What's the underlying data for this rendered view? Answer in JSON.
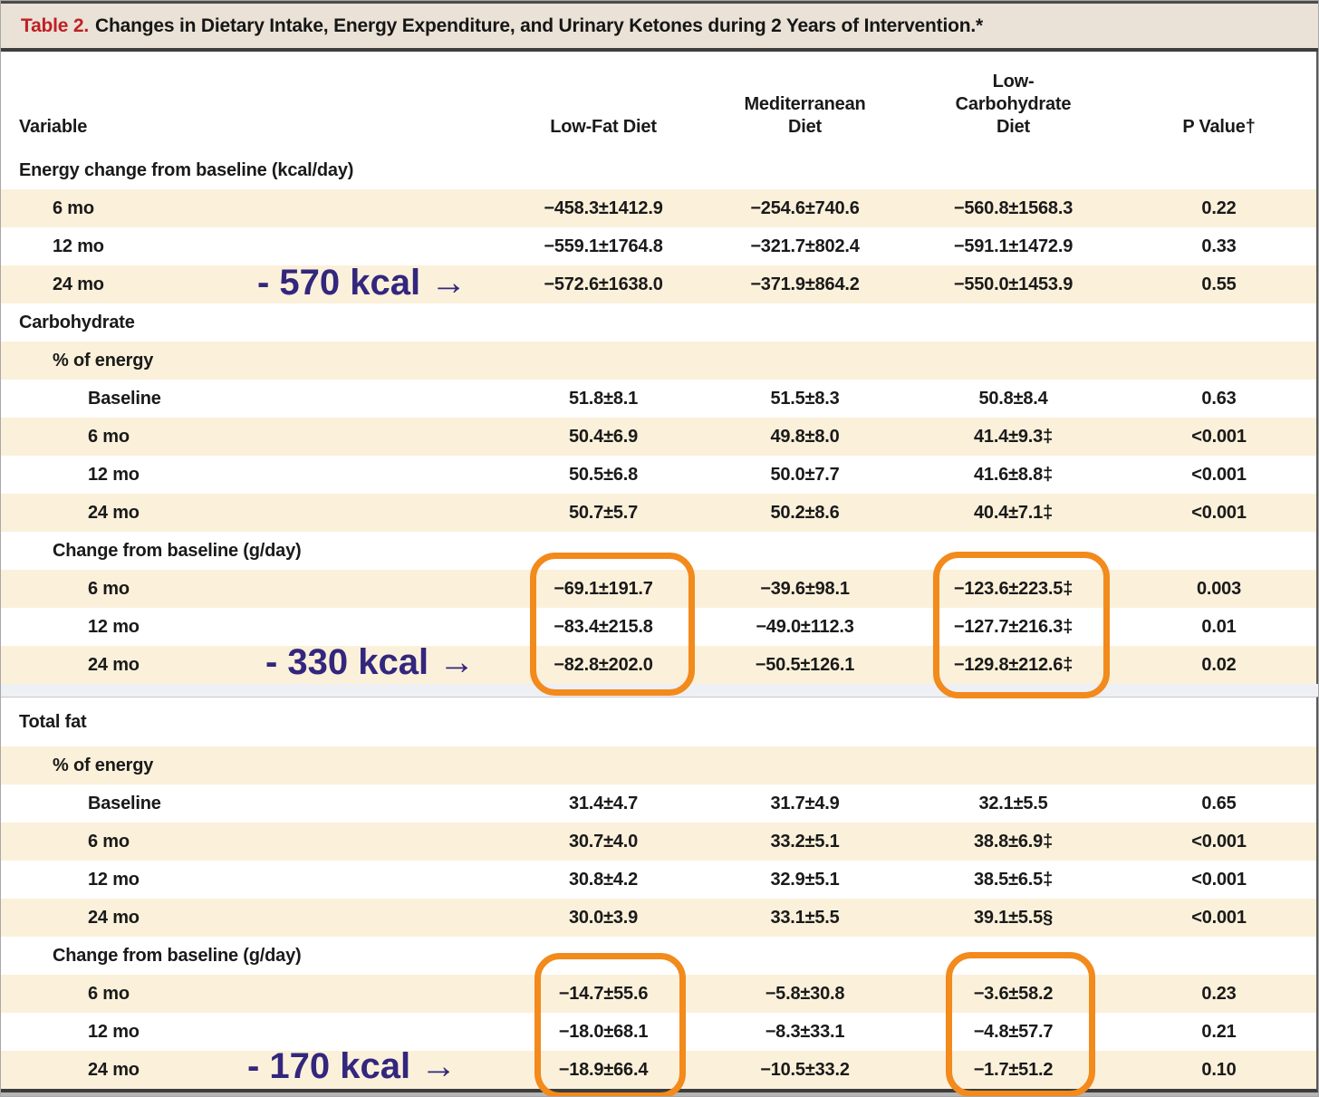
{
  "title": {
    "label": "Table 2.",
    "text": "Changes in Dietary Intake, Energy Expenditure, and Urinary Ketones during 2 Years of Intervention.*"
  },
  "columns": [
    "Variable",
    "Low-Fat Diet",
    "Mediterranean\nDiet",
    "Low-\nCarbohydrate\nDiet",
    "P Value†"
  ],
  "panels": [
    {
      "rows": [
        {
          "label": "Energy change from baseline (kcal/day)",
          "indent": 0,
          "shaded": false,
          "values": []
        },
        {
          "label": "6 mo",
          "indent": 1,
          "shaded": true,
          "values": [
            "−458.3±1412.9",
            "−254.6±740.6",
            "−560.8±1568.3",
            "0.22"
          ]
        },
        {
          "label": "12 mo",
          "indent": 1,
          "shaded": false,
          "values": [
            "−559.1±1764.8",
            "−321.7±802.4",
            "−591.1±1472.9",
            "0.33"
          ]
        },
        {
          "label": "24 mo",
          "indent": 1,
          "shaded": true,
          "values": [
            "−572.6±1638.0",
            "−371.9±864.2",
            "−550.0±1453.9",
            "0.55"
          ]
        },
        {
          "label": "Carbohydrate",
          "indent": 0,
          "shaded": false,
          "values": []
        },
        {
          "label": "% of energy",
          "indent": 1,
          "shaded": true,
          "values": []
        },
        {
          "label": "Baseline",
          "indent": 2,
          "shaded": false,
          "values": [
            "51.8±8.1",
            "51.5±8.3",
            "50.8±8.4",
            "0.63"
          ]
        },
        {
          "label": "6 mo",
          "indent": 2,
          "shaded": true,
          "values": [
            "50.4±6.9",
            "49.8±8.0",
            "41.4±9.3‡",
            "<0.001"
          ]
        },
        {
          "label": "12 mo",
          "indent": 2,
          "shaded": false,
          "values": [
            "50.5±6.8",
            "50.0±7.7",
            "41.6±8.8‡",
            "<0.001"
          ]
        },
        {
          "label": "24 mo",
          "indent": 2,
          "shaded": true,
          "values": [
            "50.7±5.7",
            "50.2±8.6",
            "40.4±7.1‡",
            "<0.001"
          ]
        },
        {
          "label": "Change from baseline (g/day)",
          "indent": 1,
          "shaded": false,
          "values": []
        },
        {
          "label": "6 mo",
          "indent": 2,
          "shaded": true,
          "values": [
            "−69.1±191.7",
            "−39.6±98.1",
            "−123.6±223.5‡",
            "0.003"
          ]
        },
        {
          "label": "12 mo",
          "indent": 2,
          "shaded": false,
          "values": [
            "−83.4±215.8",
            "−49.0±112.3",
            "−127.7±216.3‡",
            "0.01"
          ]
        },
        {
          "label": "24 mo",
          "indent": 2,
          "shaded": true,
          "values": [
            "−82.8±202.0",
            "−50.5±126.1",
            "−129.8±212.6‡",
            "0.02"
          ]
        }
      ]
    },
    {
      "rows": [
        {
          "label": "Total fat",
          "indent": 0,
          "shaded": false,
          "values": []
        },
        {
          "label": "% of energy",
          "indent": 1,
          "shaded": true,
          "values": []
        },
        {
          "label": "Baseline",
          "indent": 2,
          "shaded": false,
          "values": [
            "31.4±4.7",
            "31.7±4.9",
            "32.1±5.5",
            "0.65"
          ]
        },
        {
          "label": "6 mo",
          "indent": 2,
          "shaded": true,
          "values": [
            "30.7±4.0",
            "33.2±5.1",
            "38.8±6.9‡",
            "<0.001"
          ]
        },
        {
          "label": "12 mo",
          "indent": 2,
          "shaded": false,
          "values": [
            "30.8±4.2",
            "32.9±5.1",
            "38.5±6.5‡",
            "<0.001"
          ]
        },
        {
          "label": "24 mo",
          "indent": 2,
          "shaded": true,
          "values": [
            "30.0±3.9",
            "33.1±5.5",
            "39.1±5.5§",
            "<0.001"
          ]
        },
        {
          "label": "Change from baseline (g/day)",
          "indent": 1,
          "shaded": false,
          "values": []
        },
        {
          "label": "6 mo",
          "indent": 2,
          "shaded": true,
          "values": [
            "−14.7±55.6",
            "−5.8±30.8",
            "−3.6±58.2",
            "0.23"
          ]
        },
        {
          "label": "12 mo",
          "indent": 2,
          "shaded": false,
          "values": [
            "−18.0±68.1",
            "−8.3±33.1",
            "−4.8±57.7",
            "0.21"
          ]
        },
        {
          "label": "24 mo",
          "indent": 2,
          "shaded": true,
          "values": [
            "−18.9±66.4",
            "−10.5±33.2",
            "−1.7±51.2",
            "0.10"
          ]
        }
      ]
    }
  ],
  "annotations": [
    {
      "text": "- 570 kcal →"
    },
    {
      "text": "- 330 kcal →"
    },
    {
      "text": "- 170 kcal →"
    }
  ],
  "colors": {
    "table_number_red": "#bf2026",
    "title_bar_bg": "#eae2d6",
    "row_shade": "#fbf0da",
    "highlight_orange": "#f28a1c",
    "annotation_blue": "#32277d"
  }
}
